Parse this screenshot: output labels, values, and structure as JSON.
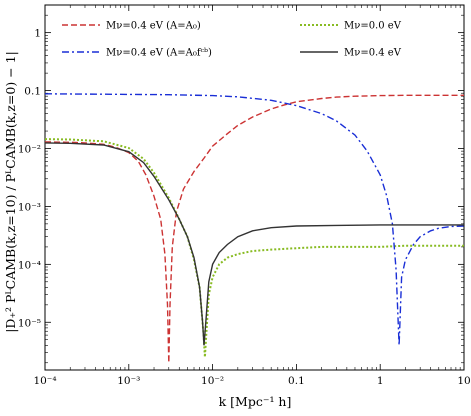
{
  "chart_data": {
    "type": "line",
    "xlabel": "k   [Mpc⁻¹ h]",
    "ylabel": "|D₊² PᴸCAMB(k,z=10) / PᴸCAMB(k,z=0) − 1|",
    "x_scale": "log",
    "y_scale": "log",
    "xlim": [
      0.0001,
      10
    ],
    "ylim": [
      1.5e-06,
      3
    ],
    "grid": false,
    "legend_placement": "top",
    "x_tick_labels": [
      "10⁻⁴",
      "10⁻³",
      "10⁻²",
      "0.1",
      "1",
      "10"
    ],
    "y_tick_labels": [
      "10⁻⁵",
      "10⁻⁴",
      "10⁻³",
      "10⁻²",
      "0.1",
      "1"
    ],
    "series": [
      {
        "name": "Mν=0.4 eV   (A=A₀)",
        "color": "#cc3333",
        "style": "dashed",
        "points": [
          [
            0.0001,
            0.013
          ],
          [
            0.0002,
            0.0128
          ],
          [
            0.0003,
            0.0125
          ],
          [
            0.0005,
            0.0118
          ],
          [
            0.0007,
            0.0105
          ],
          [
            0.001,
            0.0085
          ],
          [
            0.0013,
            0.006
          ],
          [
            0.0016,
            0.0035
          ],
          [
            0.002,
            0.0015
          ],
          [
            0.0024,
            0.0006
          ],
          [
            0.0027,
            0.00015
          ],
          [
            0.0029,
            2e-05
          ],
          [
            0.003,
            2e-06
          ],
          [
            0.0031,
            2e-05
          ],
          [
            0.0033,
            0.0002
          ],
          [
            0.0037,
            0.0008
          ],
          [
            0.0045,
            0.002
          ],
          [
            0.006,
            0.004
          ],
          [
            0.008,
            0.007
          ],
          [
            0.01,
            0.011
          ],
          [
            0.015,
            0.018
          ],
          [
            0.02,
            0.025
          ],
          [
            0.03,
            0.035
          ],
          [
            0.05,
            0.048
          ],
          [
            0.07,
            0.056
          ],
          [
            0.1,
            0.064
          ],
          [
            0.2,
            0.073
          ],
          [
            0.3,
            0.077
          ],
          [
            0.5,
            0.08
          ],
          [
            1,
            0.082
          ],
          [
            2,
            0.083
          ],
          [
            5,
            0.083
          ],
          [
            10,
            0.083
          ]
        ]
      },
      {
        "name": "Mν=0.0 eV",
        "color": "#88bb22",
        "style": "dotted",
        "points": [
          [
            0.0001,
            0.0145
          ],
          [
            0.0002,
            0.0143
          ],
          [
            0.0005,
            0.0133
          ],
          [
            0.001,
            0.0102
          ],
          [
            0.0015,
            0.0066
          ],
          [
            0.002,
            0.0038
          ],
          [
            0.003,
            0.0014
          ],
          [
            0.004,
            0.0006
          ],
          [
            0.005,
            0.0003
          ],
          [
            0.006,
            0.00012
          ],
          [
            0.007,
            4e-05
          ],
          [
            0.0078,
            6e-06
          ],
          [
            0.0081,
            2.5e-06
          ],
          [
            0.0085,
            8e-06
          ],
          [
            0.009,
            3e-05
          ],
          [
            0.01,
            6e-05
          ],
          [
            0.012,
            0.0001
          ],
          [
            0.015,
            0.00013
          ],
          [
            0.02,
            0.00015
          ],
          [
            0.03,
            0.00017
          ],
          [
            0.05,
            0.00018
          ],
          [
            0.1,
            0.00019
          ],
          [
            0.2,
            0.0002
          ],
          [
            0.5,
            0.0002
          ],
          [
            1,
            0.0002
          ],
          [
            2,
            0.00021
          ],
          [
            5,
            0.00021
          ],
          [
            10,
            0.00021
          ]
        ]
      },
      {
        "name": "Mν=0.4 eV   (A=A₀fᶜᵇ)",
        "color": "#1a2fd6",
        "style": "dashdot",
        "points": [
          [
            0.0001,
            0.088
          ],
          [
            0.0003,
            0.087
          ],
          [
            0.001,
            0.086
          ],
          [
            0.003,
            0.085
          ],
          [
            0.01,
            0.082
          ],
          [
            0.02,
            0.078
          ],
          [
            0.05,
            0.068
          ],
          [
            0.1,
            0.055
          ],
          [
            0.2,
            0.04
          ],
          [
            0.3,
            0.03
          ],
          [
            0.5,
            0.017
          ],
          [
            0.7,
            0.009
          ],
          [
            1,
            0.0035
          ],
          [
            1.2,
            0.0015
          ],
          [
            1.4,
            0.0005
          ],
          [
            1.55,
            8e-05
          ],
          [
            1.68,
            4e-06
          ],
          [
            1.8,
            6e-05
          ],
          [
            2,
            0.00012
          ],
          [
            2.5,
            0.00022
          ],
          [
            3,
            0.0003
          ],
          [
            4,
            0.00038
          ],
          [
            5,
            0.00042
          ],
          [
            7,
            0.00045
          ],
          [
            10,
            0.00046
          ]
        ]
      },
      {
        "name": "Mν=0.4 eV",
        "color": "#333333",
        "style": "solid",
        "points": [
          [
            0.0001,
            0.0125
          ],
          [
            0.0002,
            0.0123
          ],
          [
            0.0005,
            0.0115
          ],
          [
            0.001,
            0.0088
          ],
          [
            0.0015,
            0.0057
          ],
          [
            0.002,
            0.0033
          ],
          [
            0.003,
            0.0013
          ],
          [
            0.004,
            0.0006
          ],
          [
            0.005,
            0.0003
          ],
          [
            0.006,
            0.00013
          ],
          [
            0.007,
            4e-05
          ],
          [
            0.0076,
            1e-05
          ],
          [
            0.0079,
            4e-06
          ],
          [
            0.0083,
            1e-05
          ],
          [
            0.009,
            5e-05
          ],
          [
            0.01,
            0.0001
          ],
          [
            0.012,
            0.00016
          ],
          [
            0.015,
            0.00022
          ],
          [
            0.02,
            0.0003
          ],
          [
            0.03,
            0.00038
          ],
          [
            0.05,
            0.00043
          ],
          [
            0.1,
            0.00046
          ],
          [
            0.3,
            0.00047
          ],
          [
            1,
            0.00048
          ],
          [
            3,
            0.00048
          ],
          [
            10,
            0.00048
          ]
        ]
      }
    ]
  }
}
